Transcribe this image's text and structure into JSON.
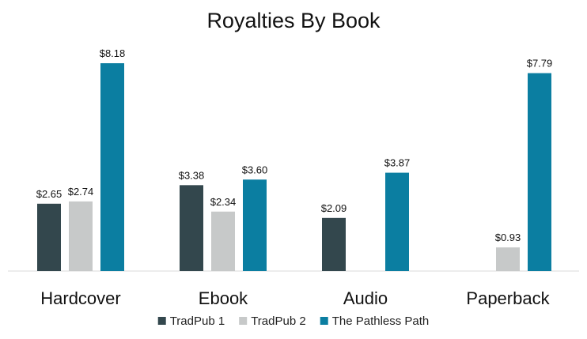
{
  "chart_data": {
    "type": "bar",
    "title": "Royalties By Book",
    "categories": [
      "Hardcover",
      "Ebook",
      "Audio",
      "Paperback"
    ],
    "series": [
      {
        "name": "TradPub 1",
        "color": "#33474d",
        "values": [
          2.65,
          3.38,
          2.09,
          null
        ],
        "labels": [
          "$2.65",
          "$3.38",
          "$2.09",
          ""
        ]
      },
      {
        "name": "TradPub 2",
        "color": "#c7c9c9",
        "values": [
          2.74,
          2.34,
          null,
          0.93
        ],
        "labels": [
          "$2.74",
          "$2.34",
          "",
          "$0.93"
        ]
      },
      {
        "name": "The Pathless Path",
        "color": "#0b7ea1",
        "values": [
          8.18,
          3.6,
          3.87,
          7.79
        ],
        "labels": [
          "$8.18",
          "$3.60",
          "$3.87",
          "$7.79"
        ]
      }
    ],
    "ylim": [
      0,
      8.18
    ],
    "grid": false,
    "legend_position": "bottom"
  }
}
